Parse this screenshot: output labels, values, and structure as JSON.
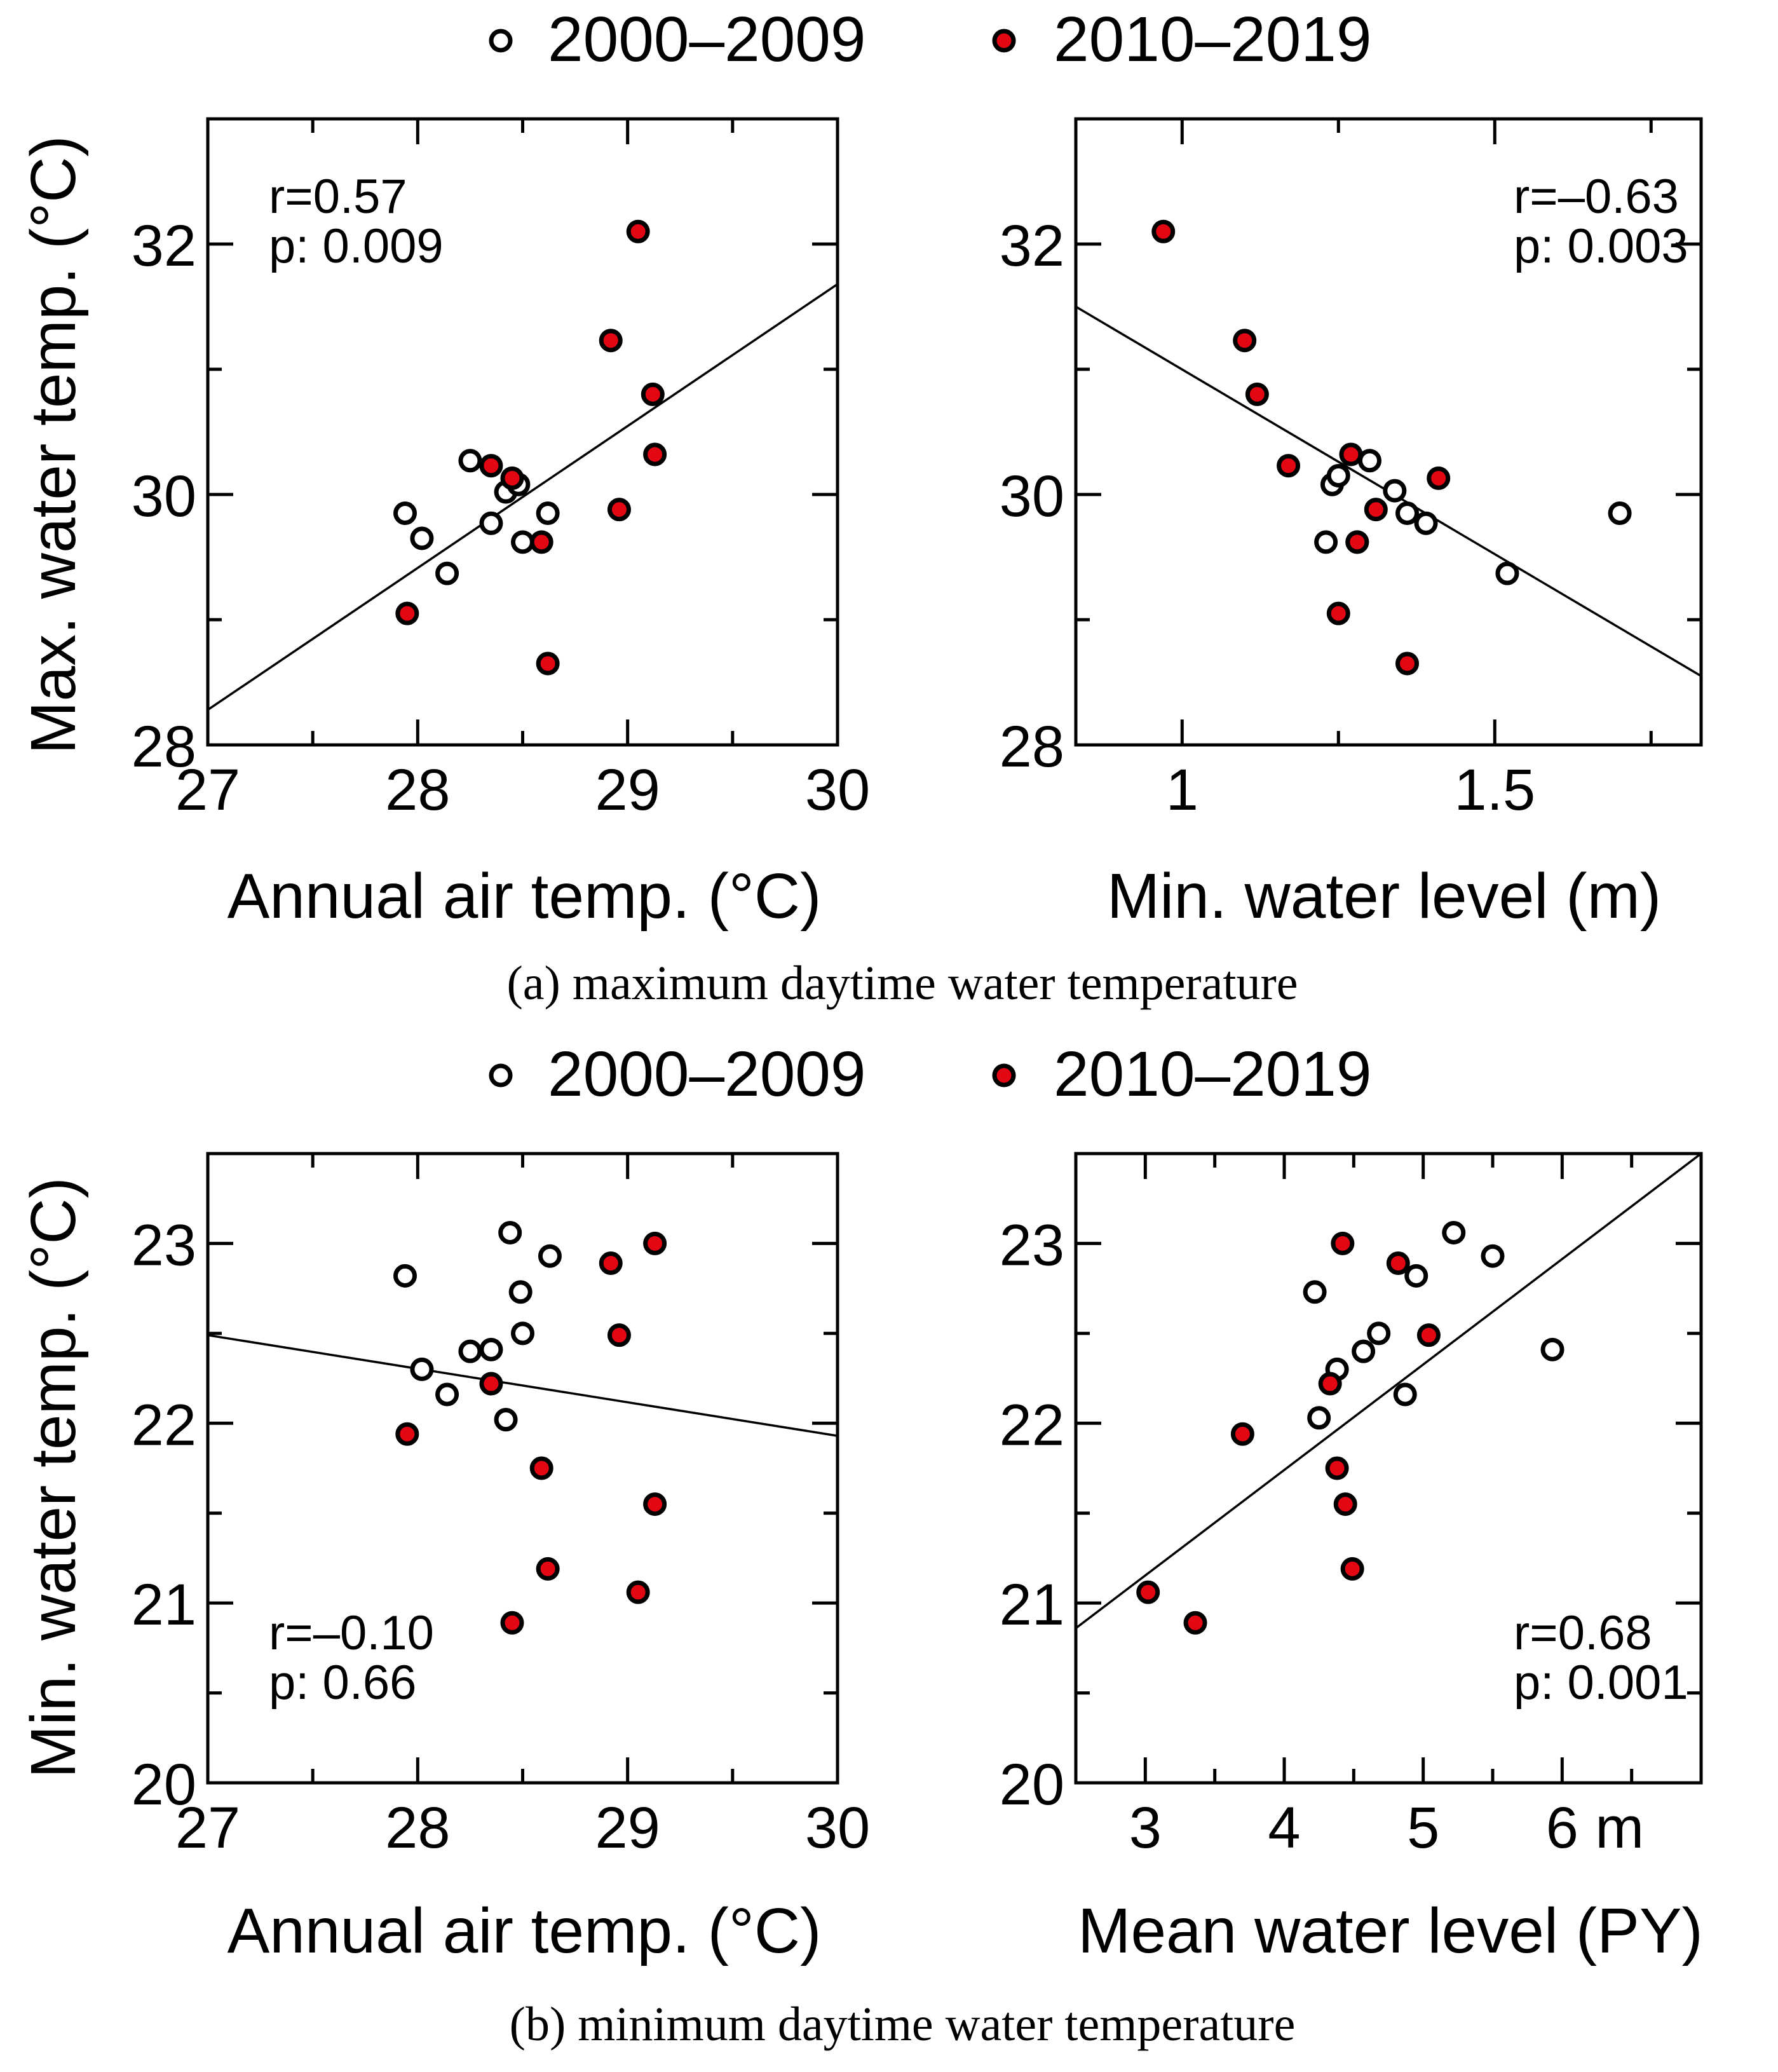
{
  "legend": {
    "open_label": "2000–2009",
    "filled_label": "2010–2019"
  },
  "colors": {
    "filled": "#e30613",
    "open": "#ffffff",
    "stroke": "#000000"
  },
  "captions": {
    "a": "(a) maximum daytime water temperature",
    "b": "(b) minimum daytime water temperature"
  },
  "chart_data": [
    {
      "id": "a1",
      "type": "scatter",
      "xlabel": "Annual air temp. (°C)",
      "ylabel": "Max. water temp. (°C)",
      "xlim": [
        27,
        30
      ],
      "ylim": [
        28,
        33
      ],
      "xticks": [
        27,
        28,
        29,
        30
      ],
      "yticks": [
        28,
        30,
        32
      ],
      "annotation": [
        "r=0.57",
        "p: 0.009"
      ],
      "annotation_loc": "top-left",
      "fit": [
        [
          27,
          28.28
        ],
        [
          30,
          31.68
        ]
      ],
      "series": [
        {
          "name": "2000–2009",
          "marker": "open",
          "x": [
            27.94,
            28.02,
            28.14,
            28.25,
            28.35,
            28.42,
            28.48,
            28.5,
            28.62
          ],
          "y": [
            29.85,
            29.65,
            29.37,
            30.27,
            29.77,
            30.02,
            30.08,
            29.62,
            29.85
          ]
        },
        {
          "name": "2010–2019",
          "marker": "filled",
          "x": [
            27.95,
            28.35,
            28.45,
            28.59,
            28.62,
            28.92,
            28.96,
            29.05,
            29.12,
            29.13
          ],
          "y": [
            29.05,
            30.23,
            30.13,
            29.62,
            28.65,
            31.23,
            29.88,
            32.1,
            30.8,
            30.32
          ]
        }
      ]
    },
    {
      "id": "a2",
      "type": "scatter",
      "xlabel": "Min. water level (m)",
      "ylabel": "",
      "xlim": [
        0.83,
        1.83
      ],
      "ylim": [
        28,
        33
      ],
      "xticks": [
        1,
        1.5
      ],
      "yticks": [
        28,
        30,
        32
      ],
      "annotation": [
        "r=–0.63",
        "p: 0.003"
      ],
      "annotation_loc": "top-right",
      "fit": [
        [
          0.83,
          31.5
        ],
        [
          1.83,
          28.55
        ]
      ],
      "series": [
        {
          "name": "2000–2009",
          "marker": "open",
          "x": [
            1.23,
            1.24,
            1.25,
            1.3,
            1.34,
            1.36,
            1.39,
            1.52,
            1.7
          ],
          "y": [
            29.62,
            30.08,
            30.15,
            30.27,
            30.03,
            29.85,
            29.77,
            29.37,
            29.85
          ]
        },
        {
          "name": "2010–2019",
          "marker": "filled",
          "x": [
            0.97,
            1.1,
            1.12,
            1.17,
            1.25,
            1.27,
            1.28,
            1.28,
            1.31,
            1.36,
            1.41
          ],
          "y": [
            32.1,
            31.23,
            30.8,
            30.23,
            29.05,
            30.32,
            29.62,
            29.62,
            29.88,
            28.65,
            30.13
          ]
        }
      ]
    },
    {
      "id": "b1",
      "type": "scatter",
      "xlabel": "Annual air temp. (°C)",
      "ylabel": "Min. water temp. (°C)",
      "xlim": [
        27,
        30
      ],
      "ylim": [
        20,
        23.5
      ],
      "xticks": [
        27,
        28,
        29,
        30
      ],
      "yticks": [
        20,
        21,
        22,
        23
      ],
      "annotation": [
        "r=–0.10",
        "p: 0.66"
      ],
      "annotation_loc": "bottom-left",
      "fit": [
        [
          27,
          22.49
        ],
        [
          30,
          21.93
        ]
      ],
      "series": [
        {
          "name": "2000–2009",
          "marker": "open",
          "x": [
            27.94,
            28.02,
            28.14,
            28.25,
            28.35,
            28.42,
            28.44,
            28.49,
            28.5,
            28.63
          ],
          "y": [
            22.82,
            22.3,
            22.16,
            22.4,
            22.41,
            22.02,
            23.06,
            22.73,
            22.5,
            22.93
          ]
        },
        {
          "name": "2010–2019",
          "marker": "filled",
          "x": [
            27.95,
            28.35,
            28.45,
            28.59,
            28.62,
            28.92,
            28.96,
            29.05,
            29.13,
            29.13
          ],
          "y": [
            21.94,
            22.22,
            20.89,
            21.75,
            21.19,
            22.89,
            22.49,
            21.06,
            21.55,
            23.0
          ]
        }
      ]
    },
    {
      "id": "b2",
      "type": "scatter",
      "xlabel": "Mean water level (PY)",
      "ylabel": "",
      "xlim": [
        2.5,
        7
      ],
      "ylim": [
        20,
        23.5
      ],
      "xticks": [
        3,
        4,
        5,
        6
      ],
      "xtick_suffix_label": "m",
      "yticks": [
        20,
        21,
        22,
        23
      ],
      "annotation": [
        "r=0.68",
        "p: 0.001"
      ],
      "annotation_loc": "bottom-right",
      "fit": [
        [
          2.5,
          20.86
        ],
        [
          7,
          23.5
        ]
      ],
      "series": [
        {
          "name": "2000–2009",
          "marker": "open",
          "x": [
            4.22,
            4.25,
            4.38,
            4.57,
            4.68,
            4.87,
            4.95,
            5.22,
            5.5,
            5.93
          ],
          "y": [
            22.73,
            22.03,
            22.3,
            22.4,
            22.5,
            22.16,
            22.82,
            23.06,
            22.93,
            22.41
          ]
        },
        {
          "name": "2010–2019",
          "marker": "filled",
          "x": [
            3.02,
            3.36,
            3.7,
            4.33,
            4.38,
            4.42,
            4.44,
            4.49,
            4.82,
            5.04
          ],
          "y": [
            21.06,
            20.89,
            21.94,
            22.22,
            21.75,
            23.0,
            21.55,
            21.19,
            22.89,
            22.49
          ]
        }
      ]
    }
  ]
}
